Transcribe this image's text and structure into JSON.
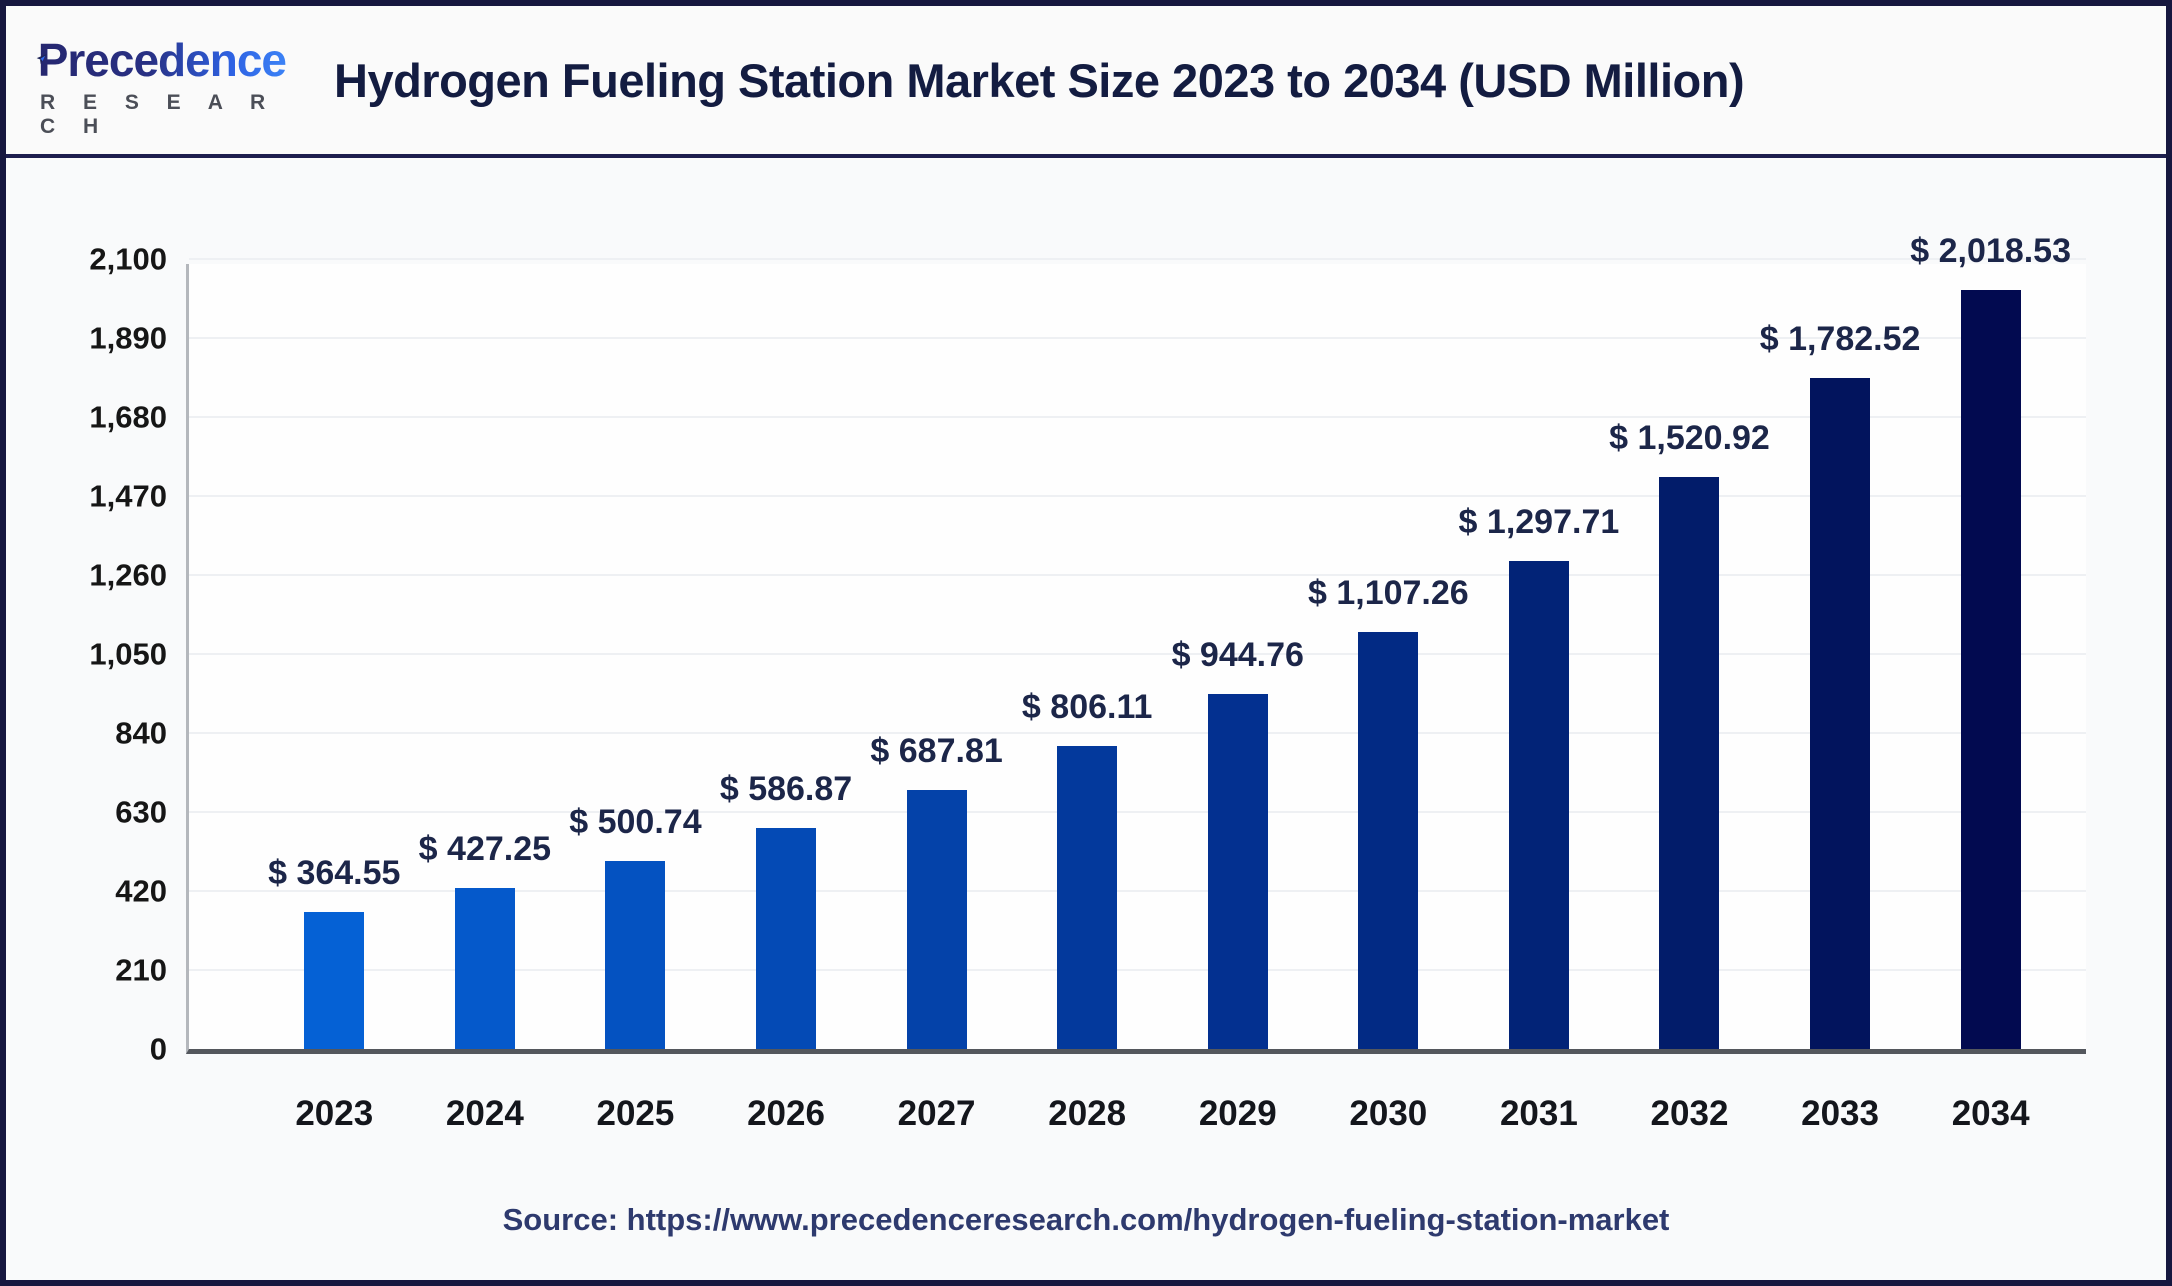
{
  "header": {
    "brand": "Precedence",
    "subbrand": "R E S E A R C H",
    "title": "Hydrogen Fueling Station Market Size 2023 to 2034 (USD Million)"
  },
  "chart_data": {
    "type": "bar",
    "title": "Hydrogen Fueling Station Market Size 2023 to 2034 (USD Million)",
    "categories": [
      "2023",
      "2024",
      "2025",
      "2026",
      "2027",
      "2028",
      "2029",
      "2030",
      "2031",
      "2032",
      "2033",
      "2034"
    ],
    "values": [
      364.55,
      427.25,
      500.74,
      586.87,
      687.81,
      806.11,
      944.76,
      1107.26,
      1297.71,
      1520.92,
      1782.52,
      2018.53
    ],
    "value_labels": [
      "$ 364.55",
      "$ 427.25",
      "$ 500.74",
      "$ 586.87",
      "$ 687.81",
      "$ 806.11",
      "$ 944.76",
      "$ 1,107.26",
      "$ 1,297.71",
      "$ 1,520.92",
      "$ 1,782.52",
      "$ 2,018.53"
    ],
    "bar_colors": [
      "#0561d5",
      "#0559cb",
      "#0452c1",
      "#044ab5",
      "#0442a9",
      "#03399c",
      "#033090",
      "#022a84",
      "#022377",
      "#021c6a",
      "#02145d",
      "#020a50"
    ],
    "xlabel": "",
    "ylabel": "",
    "ylim": [
      0,
      2100
    ],
    "y_ticks": [
      0,
      210,
      420,
      630,
      840,
      1050,
      1260,
      1470,
      1680,
      1890,
      2100
    ],
    "y_tick_labels": [
      "0",
      "210",
      "420",
      "630",
      "840",
      "1,050",
      "1,260",
      "1,470",
      "1,680",
      "1,890",
      "2,100"
    ],
    "grid": true,
    "legend": false
  },
  "footer": {
    "source_label": "Source:",
    "source_url": "https://www.precedenceresearch.com/hydrogen-fueling-station-market"
  }
}
